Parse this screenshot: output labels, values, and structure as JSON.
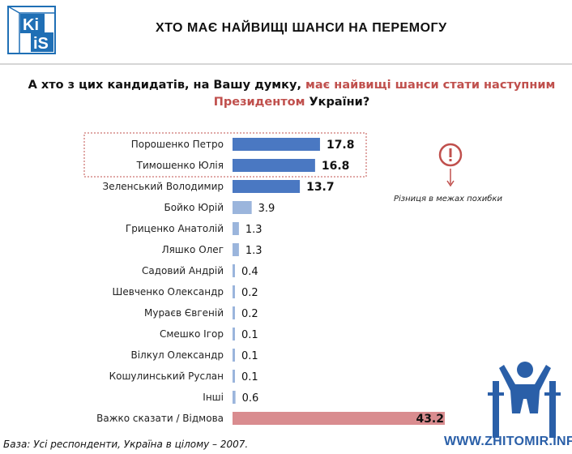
{
  "logo": {
    "text_top": "Ki",
    "text_bottom": "iS",
    "color": "#1f6fb5"
  },
  "header": {
    "title": "ХТО МАЄ НАЙВИЩІ ШАНСИ НА ПЕРЕМОГУ"
  },
  "question": {
    "part1": "А хто з цих кандидатів, на Вашу думку, ",
    "highlight": "має найвищі шанси стати наступним Президентом",
    "part2": " України?"
  },
  "note": {
    "text": "Різниця в межах похибки",
    "icon": "exclamation-circle-icon",
    "color": "#c0504d"
  },
  "footer": {
    "text": "База: Усі респонденти, Україна в цілому – 2007."
  },
  "watermark": {
    "text": "WWW.ZHITOMIR.INFO"
  },
  "colors": {
    "bar_top": "#4a78c2",
    "bar_light": "#9bb5dc",
    "bar_other": "#d98c8f",
    "frame": "#c0504d"
  },
  "chart_data": {
    "type": "bar",
    "orientation": "horizontal",
    "categories": [
      "Порошенко Петро",
      "Тимошенко Юлія",
      "Зеленський Володимир",
      "Бойко Юрій",
      "Гриценко Анатолій",
      "Ляшко Олег",
      "Садовий Андрій",
      "Шевченко Олександр",
      "Мураєв Євгеній",
      "Смешко Ігор",
      "Вілкул Олександр",
      "Кошулинський Руслан",
      "Інші",
      "Важко сказати / Відмова"
    ],
    "values": [
      17.8,
      16.8,
      13.7,
      3.9,
      1.3,
      1.3,
      0.4,
      0.2,
      0.2,
      0.1,
      0.1,
      0.1,
      0.6,
      43.2
    ],
    "value_labels": [
      "17.8",
      "16.8",
      "13.7",
      "3.9",
      "1.3",
      "1.3",
      "0.4",
      "0.2",
      "0.2",
      "0.1",
      "0.1",
      "0.1",
      "0.6",
      "43.2"
    ],
    "xlim": [
      0,
      43.2
    ],
    "highlighted": [
      "Порошенко Петро",
      "Тимошенко Юлія"
    ]
  }
}
